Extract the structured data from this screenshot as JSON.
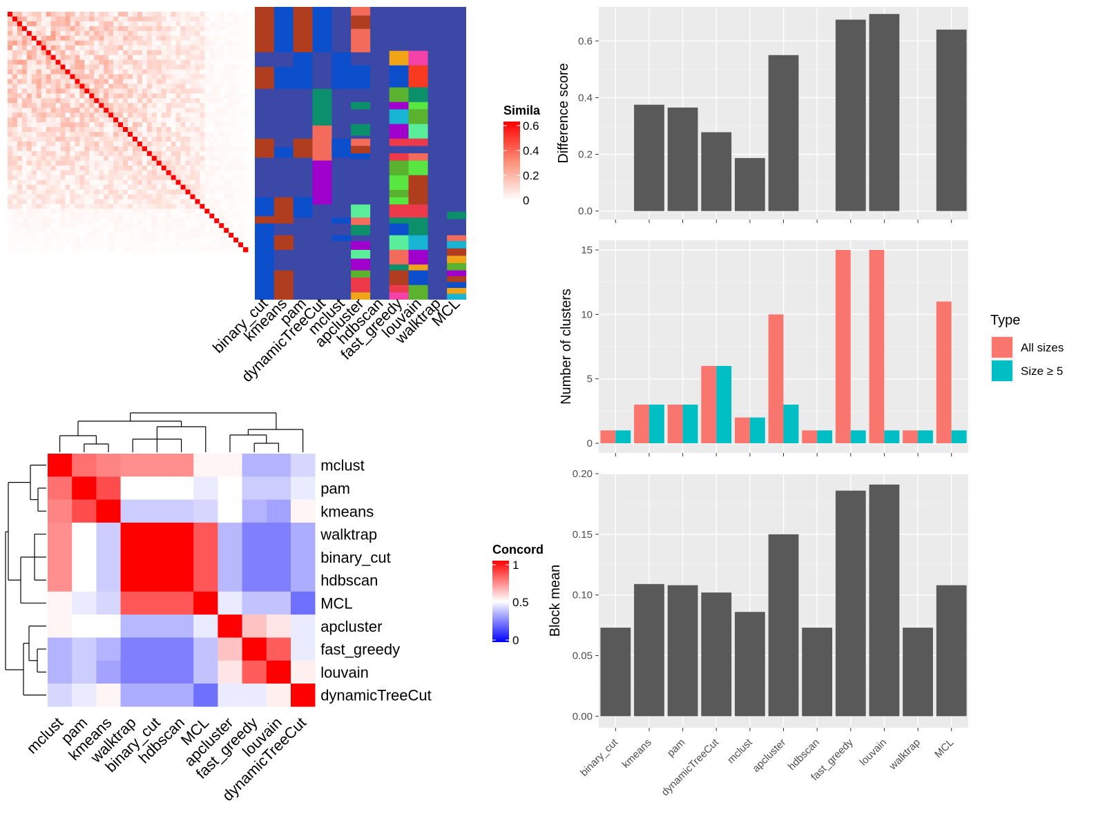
{
  "methods": [
    "binary_cut",
    "kmeans",
    "pam",
    "dynamicTreeCut",
    "mclust",
    "apcluster",
    "hdbscan",
    "fast_greedy",
    "louvain",
    "walktrap",
    "MCL"
  ],
  "similarity_legend": {
    "title": "Simila",
    "ticks": [
      "0.6",
      "0.4",
      "0.2",
      "0"
    ]
  },
  "concordance_legend": {
    "title": "Concord",
    "ticks": [
      "1",
      "0.5",
      "0"
    ]
  },
  "type_legend": {
    "title": "Type",
    "items": [
      {
        "label": "All sizes",
        "color": "#f8766d"
      },
      {
        "label": "Size ≥ 5",
        "color": "#00bfc4"
      }
    ]
  },
  "colors": {
    "panel_bg": "#ebebeb",
    "bar": "#595959",
    "diag": "#ff0000",
    "cluster_bg": "#3c48a6",
    "noise": "#0b4fcd",
    "brown": "#b03d1e",
    "bar_all": "#f8766d",
    "bar_size5": "#00bfc4"
  },
  "chart_data": [
    {
      "type": "heatmap",
      "name": "term similarity matrix",
      "legend_title": "Simila",
      "value_range": [
        0,
        0.6
      ],
      "n_terms": 50,
      "diagonal_value": 0.6,
      "colors": {
        "low": "#ffffff",
        "mid": "#fc8d75",
        "high": "#ff0000"
      }
    },
    {
      "type": "heatmap",
      "name": "cluster assignments",
      "columns": [
        "binary_cut",
        "kmeans",
        "pam",
        "dynamicTreeCut",
        "mclust",
        "apcluster",
        "hdbscan",
        "fast_greedy",
        "louvain",
        "walktrap",
        "MCL"
      ]
    },
    {
      "type": "heatmap",
      "name": "method concordance",
      "legend_title": "Concord",
      "value_range": [
        0,
        1
      ],
      "row_order": [
        "mclust",
        "pam",
        "kmeans",
        "walktrap",
        "binary_cut",
        "hdbscan",
        "MCL",
        "apcluster",
        "fast_greedy",
        "louvain",
        "dynamicTreeCut"
      ],
      "col_order": [
        "mclust",
        "pam",
        "kmeans",
        "walktrap",
        "binary_cut",
        "hdbscan",
        "MCL",
        "apcluster",
        "fast_greedy",
        "louvain",
        "dynamicTreeCut"
      ],
      "matrix": [
        [
          1.0,
          0.78,
          0.74,
          0.72,
          0.72,
          0.72,
          0.52,
          0.52,
          0.35,
          0.35,
          0.42
        ],
        [
          0.78,
          1.0,
          0.85,
          0.5,
          0.5,
          0.5,
          0.46,
          0.5,
          0.4,
          0.4,
          0.46
        ],
        [
          0.74,
          0.85,
          1.0,
          0.4,
          0.4,
          0.4,
          0.42,
          0.5,
          0.35,
          0.32,
          0.52
        ],
        [
          0.72,
          0.5,
          0.4,
          1.0,
          1.0,
          1.0,
          0.83,
          0.36,
          0.25,
          0.25,
          0.34
        ],
        [
          0.72,
          0.5,
          0.4,
          1.0,
          1.0,
          1.0,
          0.83,
          0.36,
          0.25,
          0.25,
          0.34
        ],
        [
          0.72,
          0.5,
          0.4,
          1.0,
          1.0,
          1.0,
          0.83,
          0.36,
          0.25,
          0.25,
          0.34
        ],
        [
          0.52,
          0.46,
          0.42,
          0.83,
          0.83,
          0.83,
          1.0,
          0.46,
          0.38,
          0.38,
          0.22
        ],
        [
          0.52,
          0.5,
          0.5,
          0.36,
          0.36,
          0.36,
          0.46,
          1.0,
          0.62,
          0.55,
          0.46
        ],
        [
          0.35,
          0.4,
          0.35,
          0.25,
          0.25,
          0.25,
          0.38,
          0.62,
          1.0,
          0.82,
          0.46
        ],
        [
          0.35,
          0.4,
          0.32,
          0.25,
          0.25,
          0.25,
          0.38,
          0.55,
          0.82,
          1.0,
          0.53
        ],
        [
          0.42,
          0.46,
          0.52,
          0.34,
          0.34,
          0.34,
          0.22,
          0.46,
          0.46,
          0.53,
          1.0
        ]
      ],
      "colors": {
        "low": "#0000ff",
        "mid": "#ffffff",
        "high": "#ff0000"
      }
    },
    {
      "type": "bar",
      "categories": [
        "binary_cut",
        "kmeans",
        "pam",
        "dynamicTreeCut",
        "mclust",
        "apcluster",
        "hdbscan",
        "fast_greedy",
        "louvain",
        "walktrap",
        "MCL"
      ],
      "values": [
        0.0,
        0.375,
        0.365,
        0.278,
        0.187,
        0.55,
        0.0,
        0.675,
        0.695,
        0.0,
        0.64
      ],
      "ylabel": "Difference score",
      "ylim": [
        -0.03,
        0.72
      ],
      "yticks": [
        0.0,
        0.2,
        0.4,
        0.6
      ],
      "ytick_labels": [
        "0.0",
        "0.2",
        "0.4",
        "0.6"
      ],
      "grid": true,
      "show_x_labels": false
    },
    {
      "type": "bar",
      "categories": [
        "binary_cut",
        "kmeans",
        "pam",
        "dynamicTreeCut",
        "mclust",
        "apcluster",
        "hdbscan",
        "fast_greedy",
        "louvain",
        "walktrap",
        "MCL"
      ],
      "series": [
        {
          "name": "All sizes",
          "values": [
            1,
            3,
            3,
            6,
            2,
            10,
            1,
            15,
            15,
            1,
            11
          ]
        },
        {
          "name": "Size ≥ 5",
          "values": [
            1,
            3,
            3,
            6,
            2,
            3,
            1,
            1,
            1,
            1,
            1
          ]
        }
      ],
      "ylabel": "Number of clusters",
      "ylim": [
        -0.75,
        15.75
      ],
      "yticks": [
        0,
        5,
        10,
        15
      ],
      "ytick_labels": [
        "0",
        "5",
        "10",
        "15"
      ],
      "grid": true,
      "show_x_labels": false,
      "legend_position": "right"
    },
    {
      "type": "bar",
      "categories": [
        "binary_cut",
        "kmeans",
        "pam",
        "dynamicTreeCut",
        "mclust",
        "apcluster",
        "hdbscan",
        "fast_greedy",
        "louvain",
        "walktrap",
        "MCL"
      ],
      "values": [
        0.073,
        0.109,
        0.108,
        0.102,
        0.086,
        0.15,
        0.073,
        0.186,
        0.191,
        0.073,
        0.108
      ],
      "ylabel": "Block mean",
      "ylim": [
        -0.0095,
        0.2
      ],
      "yticks": [
        0.0,
        0.05,
        0.1,
        0.15,
        0.2
      ],
      "ytick_labels": [
        "0.00",
        "0.05",
        "0.10",
        "0.15",
        "0.20"
      ],
      "grid": true,
      "show_x_labels": true
    }
  ]
}
